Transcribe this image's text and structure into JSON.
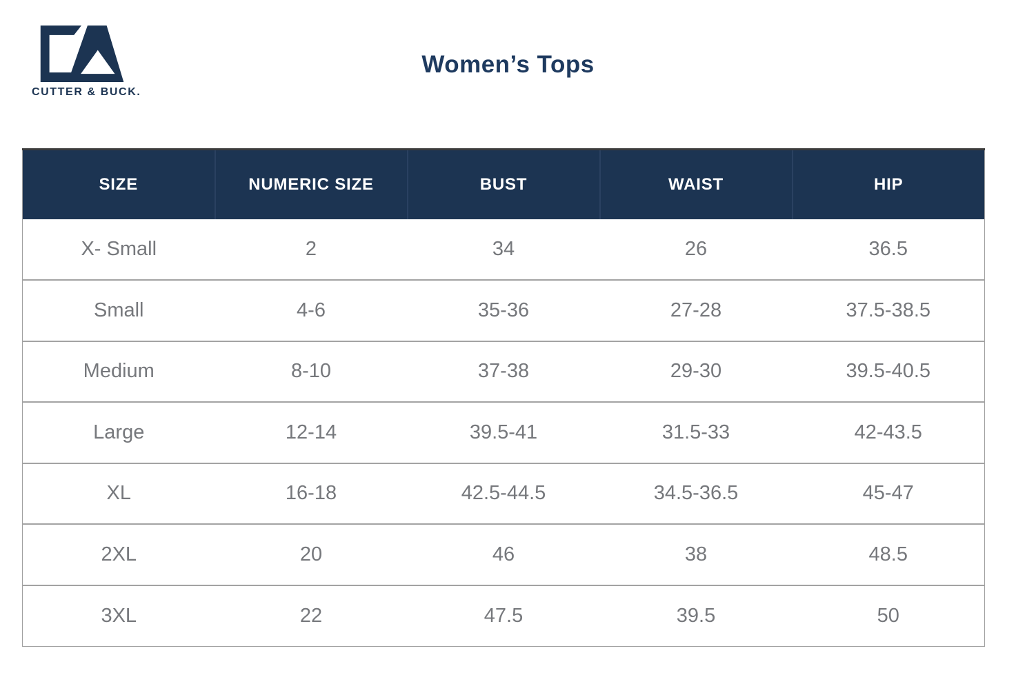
{
  "brand": {
    "name": "CUTTER & BUCK.",
    "logo_icon": "cutter-buck-cb-monogram"
  },
  "page": {
    "title": "Women’s Tops"
  },
  "colors": {
    "header_background": "#1c3452",
    "title_text": "#1e3a5f",
    "row_text": "#76787c",
    "row_border": "#a0a0a0",
    "header_text": "#ffffff"
  },
  "table": {
    "headers": [
      "SIZE",
      "NUMERIC SIZE",
      "BUST",
      "WAIST",
      "HIP"
    ],
    "rows": [
      [
        "X- Small",
        "2",
        "34",
        "26",
        "36.5"
      ],
      [
        "Small",
        "4-6",
        "35-36",
        "27-28",
        "37.5-38.5"
      ],
      [
        "Medium",
        "8-10",
        "37-38",
        "29-30",
        "39.5-40.5"
      ],
      [
        "Large",
        "12-14",
        "39.5-41",
        "31.5-33",
        "42-43.5"
      ],
      [
        "XL",
        "16-18",
        "42.5-44.5",
        "34.5-36.5",
        "45-47"
      ],
      [
        "2XL",
        "20",
        "46",
        "38",
        "48.5"
      ],
      [
        "3XL",
        "22",
        "47.5",
        "39.5",
        "50"
      ]
    ]
  }
}
